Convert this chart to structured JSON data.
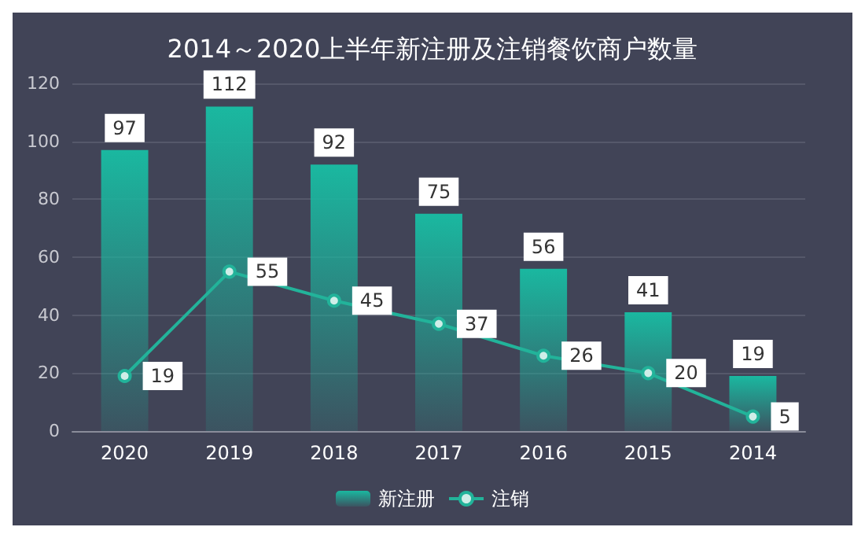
{
  "chart_data": {
    "type": "bar",
    "title": "2014～2020上半年新注册及注销餐饮商户数量",
    "categories": [
      "2020",
      "2019",
      "2018",
      "2017",
      "2016",
      "2015",
      "2014"
    ],
    "series": [
      {
        "name": "新注册",
        "color": "#1ab8a0",
        "values": [
          97,
          112,
          92,
          75,
          56,
          41,
          19
        ]
      },
      {
        "name": "注销",
        "type": "line",
        "color": "#22b39a",
        "values": [
          19,
          55,
          45,
          37,
          26,
          20,
          5
        ]
      }
    ],
    "ylim": [
      0,
      120
    ],
    "yticks": [
      0,
      20,
      40,
      60,
      80,
      100,
      120
    ],
    "grid": "y",
    "legend": "bottom",
    "marker": "circle",
    "data_labels": true
  }
}
